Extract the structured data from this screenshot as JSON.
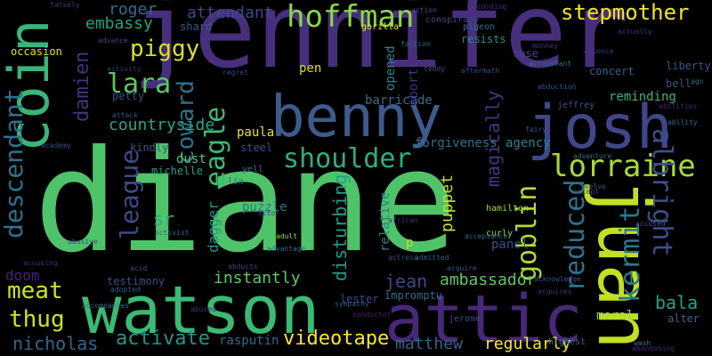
{
  "words": [
    {
      "text": "diane",
      "color": "#4fc36a"
    },
    {
      "text": "jennifer",
      "color": "#472f7d"
    },
    {
      "text": "watson",
      "color": "#3bba75"
    },
    {
      "text": "attic",
      "color": "#472878"
    },
    {
      "text": "benny",
      "color": "#3c5b8c"
    },
    {
      "text": "josh",
      "color": "#3f4788"
    },
    {
      "text": "juan",
      "color": "#c2df23"
    },
    {
      "text": "coin",
      "color": "#35b779"
    },
    {
      "text": "lorraine",
      "color": "#a5db36"
    },
    {
      "text": "hoffman",
      "color": "#8bd646"
    },
    {
      "text": "stepmother",
      "color": "#f2e51d"
    },
    {
      "text": "shoulder",
      "color": "#2ab07f"
    },
    {
      "text": "albright",
      "color": "#3d4e8a"
    },
    {
      "text": "kermit",
      "color": "#2a788e"
    },
    {
      "text": "goblin",
      "color": "#b0dd2f"
    },
    {
      "text": "reduced",
      "color": "#2c738e"
    },
    {
      "text": "descendant",
      "color": "#2c728e"
    },
    {
      "text": "league",
      "color": "#3e4a89"
    },
    {
      "text": "eagle",
      "color": "#3bbb75"
    },
    {
      "text": "coward",
      "color": "#2d718e"
    },
    {
      "text": "damien",
      "color": "#46327e"
    },
    {
      "text": "lara",
      "color": "#5cc863"
    },
    {
      "text": "piggy",
      "color": "#d8e219"
    },
    {
      "text": "meat",
      "color": "#d2e21b"
    },
    {
      "text": "thug",
      "color": "#d0e11c"
    },
    {
      "text": "nicholas",
      "color": "#31668e"
    },
    {
      "text": "activate",
      "color": "#1f958b"
    },
    {
      "text": "videotape",
      "color": "#fde725"
    },
    {
      "text": "matthew",
      "color": "#32648e"
    },
    {
      "text": "regularly",
      "color": "#fde725"
    },
    {
      "text": "ambassador",
      "color": "#5ec962"
    },
    {
      "text": "jean",
      "color": "#3f4889"
    },
    {
      "text": "disturbing",
      "color": "#1f9e89"
    },
    {
      "text": "magically",
      "color": "#453882"
    },
    {
      "text": "puppet",
      "color": "#c8e020"
    },
    {
      "text": "bala",
      "color": "#20a386"
    },
    {
      "text": "roger",
      "color": "#2e6e8e"
    },
    {
      "text": "embassy",
      "color": "#20a486"
    },
    {
      "text": "attendant",
      "color": "#3e4989"
    },
    {
      "text": "countryside",
      "color": "#22a785"
    },
    {
      "text": "dagger",
      "color": "#1f968b"
    },
    {
      "text": "instantly",
      "color": "#5ec962"
    },
    {
      "text": "doom",
      "color": "#482475"
    },
    {
      "text": "sr",
      "color": "#27ad81"
    },
    {
      "text": "paula",
      "color": "#e5e419"
    },
    {
      "text": "forgiveness",
      "color": "#2c738e"
    },
    {
      "text": "agency",
      "color": "#25848e"
    },
    {
      "text": "concert",
      "color": "#32658e"
    },
    {
      "text": "liberty",
      "color": "#39568c"
    },
    {
      "text": "reminding",
      "color": "#35b779"
    },
    {
      "text": "panel",
      "color": "#3b518b"
    },
    {
      "text": "barricade",
      "color": "#2d708e"
    },
    {
      "text": "opened",
      "color": "#24868e"
    },
    {
      "text": "abortion",
      "color": "#46337f"
    },
    {
      "text": "relative",
      "color": "#26828e"
    },
    {
      "text": "testimony",
      "color": "#3e4c8a"
    },
    {
      "text": "moral",
      "color": "#a0da39"
    },
    {
      "text": "dust",
      "color": "#56c667"
    },
    {
      "text": "michelle",
      "color": "#1fa088"
    },
    {
      "text": "kindly",
      "color": "#3a538b"
    },
    {
      "text": "puzzle",
      "color": "#2a778e"
    },
    {
      "text": "steel",
      "color": "#3c4f8a"
    },
    {
      "text": "resists",
      "color": "#21918c"
    },
    {
      "text": "petty",
      "color": "#3b528b"
    },
    {
      "text": "rasputin",
      "color": "#2f6c8e"
    },
    {
      "text": "pen",
      "color": "#d5e21a"
    },
    {
      "text": "occasion",
      "color": "#e2e418"
    },
    {
      "text": "bell",
      "color": "#39558c"
    },
    {
      "text": "p",
      "color": "#c5e021"
    },
    {
      "text": "lester",
      "color": "#3f4889"
    },
    {
      "text": "impromptu",
      "color": "#2f6b8e"
    },
    {
      "text": "alter",
      "color": "#32648e"
    },
    {
      "text": "yell",
      "color": "#2b748e"
    },
    {
      "text": "lin",
      "color": "#31688e"
    },
    {
      "text": "conspiracy",
      "color": "#3f4788"
    },
    {
      "text": "pigeon",
      "color": "#2d718e"
    },
    {
      "text": "ruse",
      "color": "#3e4a89"
    },
    {
      "text": "shard",
      "color": "#38598c"
    },
    {
      "text": "gorilla",
      "color": "#e5e419"
    },
    {
      "text": "curly",
      "color": "#95d840"
    },
    {
      "text": "jerome",
      "color": "#3e4a89"
    },
    {
      "text": "highest",
      "color": "#2e6f8e"
    },
    {
      "text": "hamilton",
      "color": "#95d840"
    },
    {
      "text": "jeffrey",
      "color": "#3b528b"
    },
    {
      "text": "falsely",
      "color": "#46337f"
    },
    {
      "text": "action",
      "color": "#3b518b"
    },
    {
      "text": "according",
      "color": "#46307e"
    },
    {
      "text": "faction",
      "color": "#2f6b8e"
    },
    {
      "text": "sympathy",
      "color": "#38598c"
    },
    {
      "text": "conductor",
      "color": "#482677"
    },
    {
      "text": "wash",
      "color": "#2b758e"
    },
    {
      "text": "admitted",
      "color": "#32658e"
    },
    {
      "text": "actress",
      "color": "#3b528b"
    },
    {
      "text": "acquire",
      "color": "#39568c"
    },
    {
      "text": "adult",
      "color": "#95d840"
    },
    {
      "text": "advantage",
      "color": "#2c728e"
    },
    {
      "text": "actor",
      "color": "#46327e"
    },
    {
      "text": "accept",
      "color": "#3e4989"
    },
    {
      "text": "accused",
      "color": "#39568c"
    },
    {
      "text": "abduction",
      "color": "#3b528b"
    },
    {
      "text": "ability",
      "color": "#2e6f8e"
    },
    {
      "text": "activity",
      "color": "#46337f"
    },
    {
      "text": "acid",
      "color": "#3b528b"
    },
    {
      "text": "abusive",
      "color": "#3e4a89"
    },
    {
      "text": "adopted",
      "color": "#38598c"
    },
    {
      "text": "abducts",
      "color": "#3f4788"
    },
    {
      "text": "abused",
      "color": "#472d7b"
    },
    {
      "text": "accompanies",
      "color": "#2c738e"
    },
    {
      "text": "acquires",
      "color": "#46337f"
    },
    {
      "text": "acknowledge",
      "color": "#3b528b"
    },
    {
      "text": "aftermath",
      "color": "#3e4a89"
    },
    {
      "text": "monkey",
      "color": "#46327e"
    },
    {
      "text": "adventure",
      "color": "#2f6c8e"
    },
    {
      "text": "twelve",
      "color": "#39568c"
    },
    {
      "text": "abandoning",
      "color": "#472878"
    },
    {
      "text": "attack",
      "color": "#3b518b"
    },
    {
      "text": "accountant",
      "color": "#2c728e"
    },
    {
      "text": "actually",
      "color": "#472d7b"
    },
    {
      "text": "abilities",
      "color": "#482677"
    },
    {
      "text": "absence",
      "color": "#46337f"
    },
    {
      "text": "advance",
      "color": "#3e4a89"
    },
    {
      "text": "academy",
      "color": "#3b528b"
    },
    {
      "text": "regret",
      "color": "#3e4989"
    },
    {
      "text": "activist",
      "color": "#2f6c8e"
    },
    {
      "text": "fairy",
      "color": "#3b528b"
    },
    {
      "text": "ago",
      "color": "#2c728e"
    },
    {
      "text": "teddy",
      "color": "#3e4a89"
    },
    {
      "text": "african",
      "color": "#46337f"
    },
    {
      "text": "accusing",
      "color": "#472d7b"
    },
    {
      "text": "acceptance",
      "color": "#2e6f8e"
    }
  ]
}
